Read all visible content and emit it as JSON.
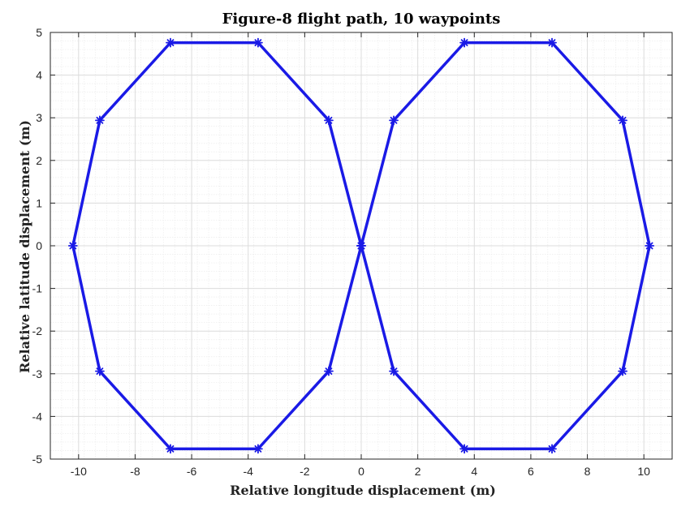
{
  "chart_data": {
    "type": "line",
    "title": "Figure-8 flight path, 10 waypoints",
    "xlabel": "Relative longitude displacement (m)",
    "ylabel": "Relative latitude displacement (m)",
    "xlim": [
      -11,
      11
    ],
    "ylim": [
      -5,
      5
    ],
    "x_ticks": [
      -10,
      -8,
      -6,
      -4,
      -2,
      0,
      2,
      4,
      6,
      8,
      10
    ],
    "y_ticks": [
      -5,
      -4,
      -3,
      -2,
      -1,
      0,
      1,
      2,
      3,
      4,
      5
    ],
    "grid": true,
    "minor_grid": true,
    "legend": "none",
    "line_color": "#1a1ae6",
    "marker": "asterisk",
    "series": [
      {
        "x": [
          0,
          1.15,
          3.65,
          6.75,
          9.25,
          10.2,
          9.25,
          6.75,
          3.65,
          1.15,
          0,
          -1.15,
          -3.65,
          -6.75,
          -9.25,
          -10.2,
          -9.25,
          -6.75,
          -3.65,
          -1.15,
          0
        ],
        "y": [
          0,
          2.94,
          4.76,
          4.76,
          2.94,
          0,
          -2.94,
          -4.76,
          -4.76,
          -2.94,
          0,
          2.94,
          4.76,
          4.76,
          2.94,
          0,
          -2.94,
          -4.76,
          -4.76,
          -2.94,
          0
        ]
      }
    ]
  }
}
